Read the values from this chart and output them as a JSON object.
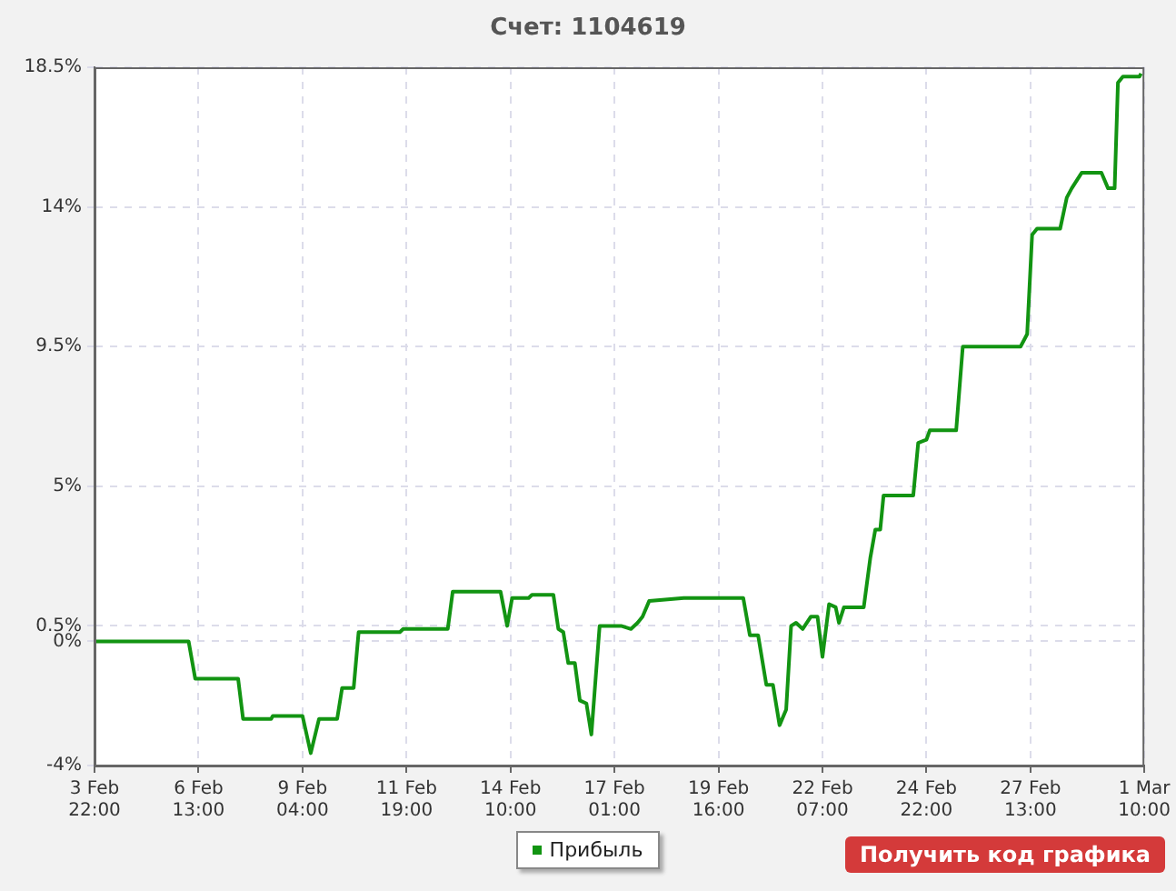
{
  "chart_data": {
    "type": "line",
    "title": "Счет: 1104619",
    "x": [
      "--02-03T22:00",
      "--02-06T07:00",
      "--02-06T11:00",
      "--02-07T13:00",
      "--02-07T16:00",
      "--02-08T09:00",
      "--02-08T10:00",
      "--02-09T04:00",
      "--02-09T09:00",
      "--02-09T14:00",
      "--02-10T01:00",
      "--02-10T04:00",
      "--02-10T11:00",
      "--02-10T14:00",
      "--02-11T15:00",
      "--02-11T17:00",
      "--02-12T11:00",
      "--02-12T20:00",
      "--02-12T23:00",
      "--02-14T04:00",
      "--02-14T08:00",
      "--02-14T11:00",
      "--02-14T21:00",
      "--02-14T23:00",
      "--02-15T12:00",
      "--02-15T15:00",
      "--02-15T18:00",
      "--02-15T21:00",
      "--02-16T01:00",
      "--02-16T04:00",
      "--02-16T08:00",
      "--02-16T11:00",
      "--02-16T16:00",
      "--02-17T05:00",
      "--02-17T11:00",
      "--02-17T15:00",
      "--02-17T18:00",
      "--02-17T22:00",
      "--02-18T19:00",
      "--02-20T07:00",
      "--02-20T11:00",
      "--02-20T16:00",
      "--02-20T21:00",
      "--02-21T01:00",
      "--02-21T05:00",
      "--02-21T09:00",
      "--02-21T12:00",
      "--02-21T15:00",
      "--02-21T19:00",
      "--02-22T00:00",
      "--02-22T04:00",
      "--02-22T07:00",
      "--02-22T11:00",
      "--02-22T15:00",
      "--02-22T17:00",
      "--02-22T20:00",
      "--02-23T08:00",
      "--02-23T12:00",
      "--02-23T15:00",
      "--02-23T18:00",
      "--02-23T20:00",
      "--02-24T14:00",
      "--02-24T17:00",
      "--02-24T22:00",
      "--02-25T00:00",
      "--02-25T16:00",
      "--02-25T20:00",
      "--02-27T07:00",
      "--02-27T11:00",
      "--02-27T14:00",
      "--02-27T17:00",
      "--02-28T07:00",
      "--02-28T11:00",
      "--02-28T14:00",
      "--02-28T20:00",
      "--02-29T08:00",
      "--02-29T12:00",
      "--02-29T16:00",
      "--02-29T18:00",
      "--02-29T21:00",
      "--03-01T07:00",
      "--03-01T08:00"
    ],
    "series": [
      {
        "name": "Прибыль",
        "color": "#129412",
        "values": [
          0,
          0,
          -1.2,
          -1.2,
          -2.5,
          -2.5,
          -2.4,
          -2.4,
          -3.6,
          -2.5,
          -2.5,
          -1.5,
          -1.5,
          0.3,
          0.3,
          0.4,
          0.4,
          0.4,
          1.6,
          1.6,
          0.5,
          1.4,
          1.4,
          1.5,
          1.5,
          0.4,
          0.3,
          -0.7,
          -0.7,
          -1.9,
          -2.0,
          -3.0,
          0.5,
          0.5,
          0.4,
          0.6,
          0.8,
          1.3,
          1.4,
          1.4,
          0.2,
          0.2,
          -1.4,
          -1.4,
          -2.7,
          -2.2,
          0.5,
          0.6,
          0.4,
          0.8,
          0.8,
          -0.5,
          1.2,
          1.1,
          0.6,
          1.1,
          1.1,
          2.7,
          3.6,
          3.6,
          4.7,
          4.7,
          6.4,
          6.5,
          6.8,
          6.8,
          9.5,
          9.5,
          9.9,
          13.1,
          13.3,
          13.3,
          14.3,
          14.6,
          15.1,
          15.1,
          14.6,
          14.6,
          18.0,
          18.2,
          18.2,
          18.3
        ]
      }
    ],
    "xlim": [
      "--02-03T22:00",
      "--03-01T10:00"
    ],
    "xticks": [
      {
        "value": "--02-03T22:00",
        "label": "3 Feb 22:00"
      },
      {
        "value": "--02-06T13:00",
        "label": "6 Feb 13:00"
      },
      {
        "value": "--02-09T04:00",
        "label": "9 Feb 04:00"
      },
      {
        "value": "--02-11T19:00",
        "label": "11 Feb 19:00"
      },
      {
        "value": "--02-14T10:00",
        "label": "14 Feb 10:00"
      },
      {
        "value": "--02-17T01:00",
        "label": "17 Feb 01:00"
      },
      {
        "value": "--02-19T16:00",
        "label": "19 Feb 16:00"
      },
      {
        "value": "--02-22T07:00",
        "label": "22 Feb 07:00"
      },
      {
        "value": "--02-24T22:00",
        "label": "24 Feb 22:00"
      },
      {
        "value": "--02-27T13:00",
        "label": "27 Feb 13:00"
      },
      {
        "value": "--03-01T10:00",
        "label": "1 Mar 10:00"
      }
    ],
    "ylim": [
      -4,
      18.5
    ],
    "yticks": [
      {
        "value": -4,
        "label": "-4%"
      },
      {
        "value": 0,
        "label": "0%"
      },
      {
        "value": 0.5,
        "label": "0.5%"
      },
      {
        "value": 5,
        "label": "5%"
      },
      {
        "value": 9.5,
        "label": "9.5%"
      },
      {
        "value": 14,
        "label": "14%"
      },
      {
        "value": 18.5,
        "label": "18.5%"
      }
    ],
    "grid": true,
    "legend": "bottom",
    "marker": "none",
    "line_style": "solid",
    "annotations": [
      "Получить код графика"
    ]
  }
}
